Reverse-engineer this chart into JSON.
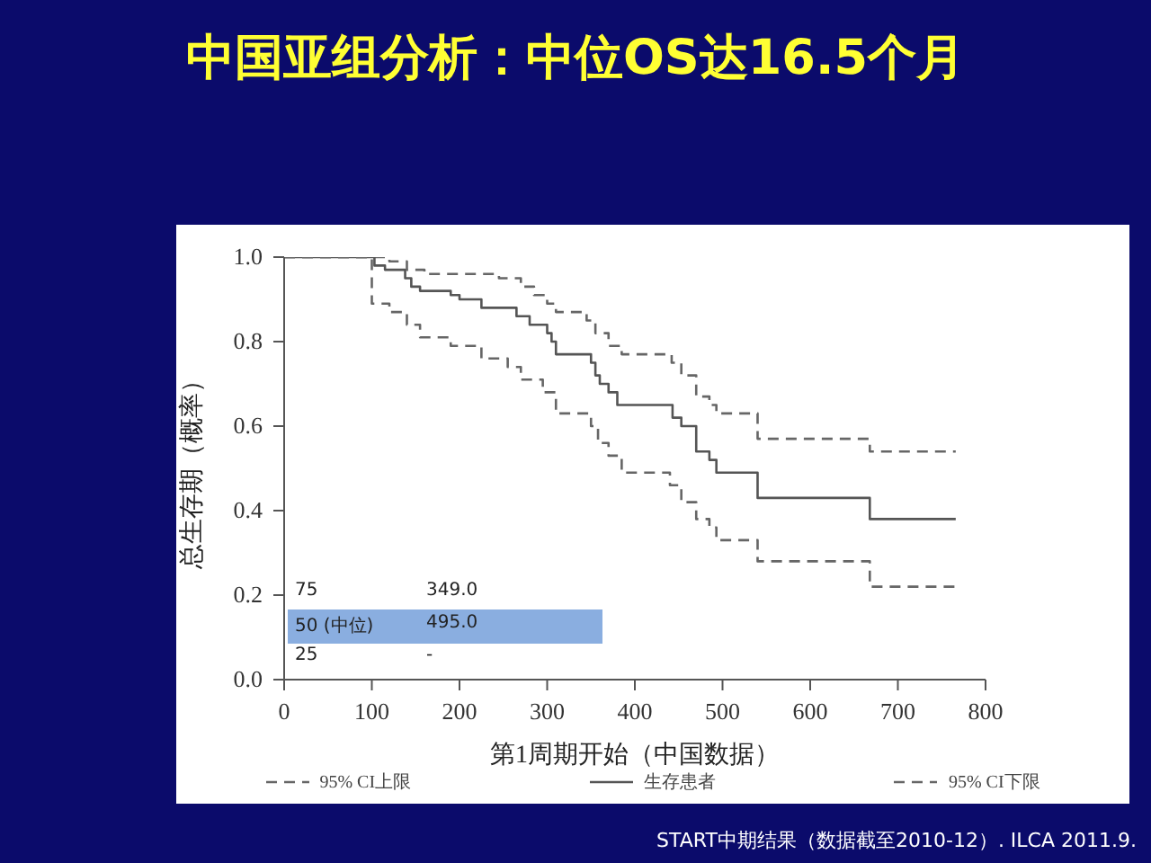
{
  "chart_data": {
    "type": "step",
    "title": "中国亚组分析：中位OS达16.5个月",
    "xlabel": "第1周期开始（中国数据）",
    "ylabel": "总生存期（概率）",
    "xlim": [
      0,
      800
    ],
    "xticks": [
      0,
      100,
      200,
      300,
      400,
      500,
      600,
      700,
      800
    ],
    "ylim": [
      0,
      1
    ],
    "yticks": [
      {
        "value": 0,
        "label": "0.0"
      },
      {
        "value": 0.2,
        "label": "0.2"
      },
      {
        "value": 0.4,
        "label": "0.4"
      },
      {
        "value": 0.6,
        "label": "0.6"
      },
      {
        "value": 0.8,
        "label": "0.8"
      },
      {
        "value": 1,
        "label": "1.0"
      }
    ],
    "legend": "bottom",
    "marker": "none",
    "series": [
      {
        "name": "95% CI上限",
        "color": "#666666",
        "line_style": "dashed",
        "x": [
          0,
          110,
          120,
          140,
          160,
          245,
          270,
          285,
          300,
          310,
          345,
          355,
          370,
          385,
          442,
          453,
          470,
          485,
          493,
          540,
          668,
          766
        ],
        "values": [
          1,
          1,
          0.99,
          0.97,
          0.96,
          0.95,
          0.93,
          0.91,
          0.89,
          0.87,
          0.85,
          0.82,
          0.79,
          0.77,
          0.75,
          0.72,
          0.67,
          0.65,
          0.63,
          0.57,
          0.54,
          0.54
        ]
      },
      {
        "name": "生存患者",
        "color": "#555555",
        "line_style": "solid",
        "x": [
          0,
          103,
          115,
          138,
          145,
          155,
          190,
          200,
          225,
          265,
          280,
          300,
          305,
          310,
          350,
          355,
          360,
          370,
          380,
          443,
          453,
          470,
          485,
          493,
          540,
          668,
          766
        ],
        "values": [
          1,
          0.98,
          0.97,
          0.95,
          0.93,
          0.92,
          0.91,
          0.9,
          0.88,
          0.86,
          0.84,
          0.82,
          0.8,
          0.77,
          0.75,
          0.72,
          0.7,
          0.68,
          0.65,
          0.62,
          0.6,
          0.54,
          0.52,
          0.49,
          0.43,
          0.38,
          0.38
        ]
      },
      {
        "name": "95% CI下限",
        "color": "#666666",
        "line_style": "dashed",
        "x": [
          0,
          100,
          120,
          140,
          155,
          190,
          225,
          255,
          270,
          295,
          310,
          350,
          358,
          370,
          385,
          440,
          453,
          470,
          485,
          493,
          540,
          668,
          766
        ],
        "values": [
          1,
          0.89,
          0.87,
          0.84,
          0.81,
          0.79,
          0.76,
          0.74,
          0.71,
          0.68,
          0.63,
          0.6,
          0.56,
          0.53,
          0.49,
          0.46,
          0.42,
          0.38,
          0.36,
          0.33,
          0.28,
          0.22,
          0.22
        ]
      }
    ],
    "annotations": [
      "75",
      "349.0",
      "50 (中位)",
      "495.0",
      "25",
      "-",
      "START中期结果（数据截至2010-12）. ILCA 2011.9."
    ]
  }
}
